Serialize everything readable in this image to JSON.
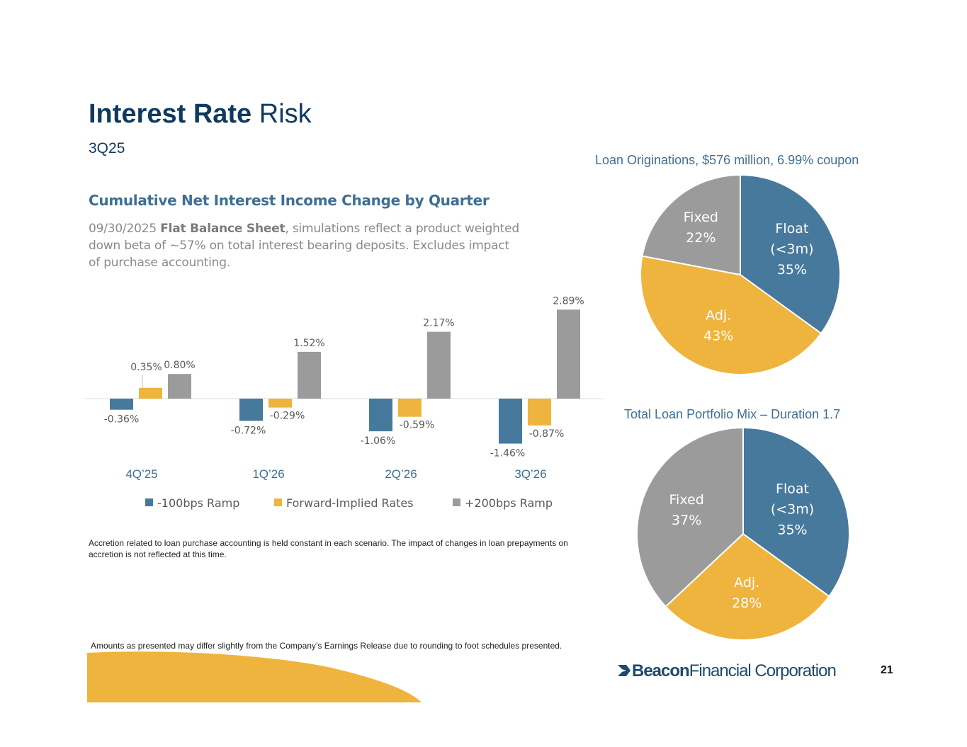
{
  "header": {
    "title_bold": "Interest Rate",
    "title_regular": "Risk",
    "subtitle": "3Q25"
  },
  "section": {
    "heading": "Cumulative Net Interest Income Change by Quarter",
    "description_date": "09/30/2025",
    "description_bold": "Flat Balance Sheet",
    "description_rest": ", simulations reflect a product weighted down beta of ~57% on total interest bearing deposits.  Excludes impact of purchase accounting."
  },
  "notes": {
    "accretion": "Accretion related to loan purchase accounting is held constant in each scenario.  The impact of changes in loan prepayments on accretion is not reflected at this time.",
    "rounding": "Amounts as presented may differ slightly from the Company’s Earnings Release due to rounding to foot schedules presented."
  },
  "footer": {
    "logo_bold": "Beacon",
    "logo_regular": "Financial Corporation",
    "page_number": "21"
  },
  "colors": {
    "blue": "#46799c",
    "gold": "#efb43d",
    "gray": "#9b9b9b",
    "title": "#0f3a5f"
  },
  "chart_data": [
    {
      "type": "bar",
      "title": "Cumulative Net Interest Income Change by Quarter",
      "categories": [
        "4Q’25",
        "1Q’26",
        "2Q’26",
        "3Q’26"
      ],
      "series": [
        {
          "name": "-100bps Ramp",
          "values": [
            -0.36,
            -0.72,
            -1.06,
            -1.46
          ],
          "labels": [
            "-0.36%",
            "-0.72%",
            "-1.06%",
            "-1.46%"
          ]
        },
        {
          "name": "Forward-Implied Rates",
          "values": [
            0.35,
            -0.29,
            -0.59,
            -0.87
          ],
          "labels": [
            "0.35%",
            "-0.29%",
            "-0.59%",
            "-0.87%"
          ]
        },
        {
          "name": "+200bps Ramp",
          "values": [
            0.8,
            1.52,
            2.17,
            2.89
          ],
          "labels": [
            "0.80%",
            "1.52%",
            "2.17%",
            "2.89%"
          ]
        }
      ],
      "legend_position": "bottom",
      "unit": "%"
    },
    {
      "type": "pie",
      "title": "Loan Originations, $576 million, 6.99% coupon",
      "slices": [
        {
          "name": "Float (<3m)",
          "lines": [
            "Float",
            "(<3m)",
            "35%"
          ],
          "value": 35
        },
        {
          "name": "Adj.",
          "lines": [
            "Adj.",
            "43%"
          ],
          "value": 43
        },
        {
          "name": "Fixed",
          "lines": [
            "Fixed",
            "22%"
          ],
          "value": 22
        }
      ]
    },
    {
      "type": "pie",
      "title": "Total Loan Portfolio Mix – Duration 1.7",
      "slices": [
        {
          "name": "Float (<3m)",
          "lines": [
            "Float",
            "(<3m)",
            "35%"
          ],
          "value": 35
        },
        {
          "name": "Adj.",
          "lines": [
            "Adj.",
            "28%"
          ],
          "value": 28
        },
        {
          "name": "Fixed",
          "lines": [
            "Fixed",
            "37%"
          ],
          "value": 37
        }
      ]
    }
  ]
}
